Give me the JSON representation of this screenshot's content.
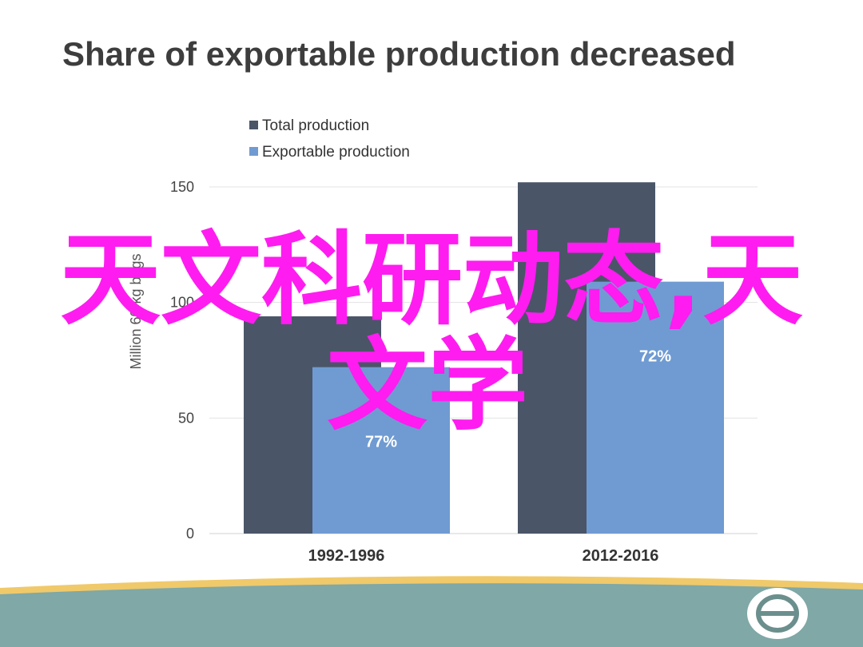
{
  "title": "Share of exportable production decreased",
  "overlay_text": {
    "line1": "天文科研动态,天",
    "line2": "文学"
  },
  "colors": {
    "total": "#4a5568",
    "exportable": "#6f9bd2",
    "overlay": "#ff1cf0",
    "footer_band": "#7fa8a6",
    "footer_stripe": "#f0c96a"
  },
  "chart_data": {
    "type": "bar",
    "categories": [
      "1992-1996",
      "2012-2016"
    ],
    "series": [
      {
        "name": "Total production",
        "values": [
          94,
          152
        ]
      },
      {
        "name": "Exportable production",
        "values": [
          72,
          109
        ],
        "labels": [
          "77%",
          "72%"
        ]
      }
    ],
    "ylabel": "Million 60-kg bags",
    "ylim": [
      0,
      150
    ],
    "yticks": [
      0,
      50,
      100,
      150
    ],
    "grid": true,
    "legend": "top-left"
  },
  "badge_icon": "coffee-bean-icon"
}
